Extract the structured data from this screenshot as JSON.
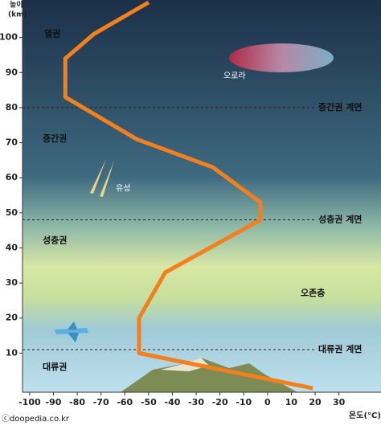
{
  "chart_data": {
    "type": "line",
    "y_label": "높이",
    "y_unit": "(km)",
    "x_label": "온도(°C)",
    "x": [
      -50,
      -73,
      -85,
      -85,
      -55,
      -23,
      -3,
      -3,
      -43,
      -54,
      -54,
      19
    ],
    "series": [
      {
        "color": "#f2801e",
        "values": [
          110,
          101,
          94,
          83,
          71,
          63,
          53,
          48,
          33,
          20,
          10,
          0
        ]
      }
    ],
    "xlim": [
      -103,
      46
    ],
    "ylim": [
      0,
      110
    ],
    "xticks": [
      -100,
      -90,
      -80,
      -70,
      -60,
      -50,
      -40,
      -30,
      -20,
      -10,
      0,
      10,
      20,
      30
    ],
    "yticks": [
      10,
      20,
      30,
      40,
      50,
      60,
      70,
      80,
      90,
      100
    ],
    "boundaries": [
      {
        "label": "중간권 계면",
        "value": 80
      },
      {
        "label": "성층권 계면",
        "value": 48
      },
      {
        "label": "대류권 계면",
        "value": 11
      }
    ],
    "regions": [
      "열권",
      "중간권",
      "성층권",
      "대류권",
      "오존층"
    ],
    "annotations": [
      "오로라",
      "유성"
    ],
    "credit": "ⓒdoopedia.co.kr"
  }
}
